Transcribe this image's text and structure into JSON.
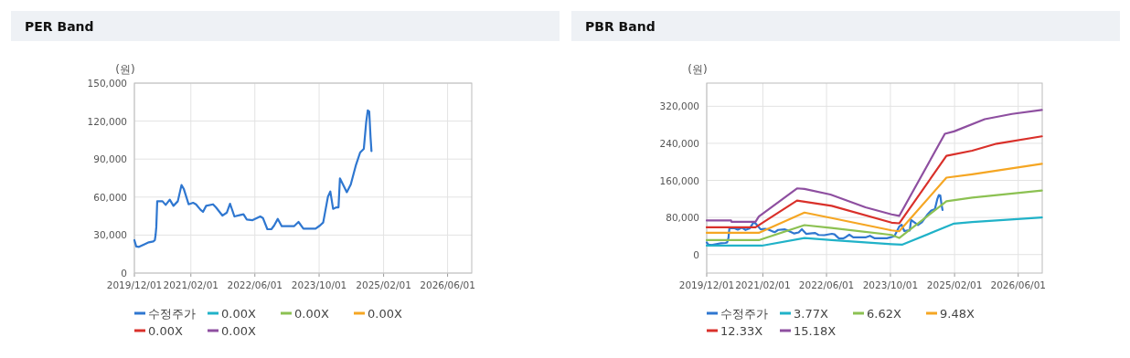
{
  "chart_data": [
    {
      "type": "line",
      "title": "PER Band",
      "ylabel": "(원)",
      "xlim": [
        "2019-12-01",
        "2026-12-01"
      ],
      "ylim": [
        0,
        150000
      ],
      "xticks": [
        {
          "value": "2019-12-01",
          "label": "2019/12/01"
        },
        {
          "value": "2021-02-01",
          "label": "2021/02/01"
        },
        {
          "value": "2022-06-01",
          "label": "2022/06/01"
        },
        {
          "value": "2023-10-01",
          "label": "2023/10/01"
        },
        {
          "value": "2025-02-01",
          "label": "2025/02/01"
        },
        {
          "value": "2026-06-01",
          "label": "2026/06/01"
        }
      ],
      "yticks": [
        0,
        {
          "value": 30000,
          "label": "30,000"
        },
        {
          "value": 60000,
          "label": "60,000"
        },
        {
          "value": 90000,
          "label": "90,000"
        },
        {
          "value": 120000,
          "label": "120,000"
        },
        {
          "value": 150000,
          "label": "150,000"
        }
      ],
      "grid": true,
      "legend": "bottom",
      "line_style": "solid",
      "series": [
        {
          "name": "수정주가",
          "color": "#2f77d0",
          "x": [
            "2019-12-01",
            "2019-12-15",
            "2020-01-05",
            "2020-02-12",
            "2020-03-19",
            "2020-04-22",
            "2020-05-04",
            "2020-05-10",
            "2020-05-15",
            "2020-05-22",
            "2020-07-01",
            "2020-07-25",
            "2020-08-25",
            "2020-09-22",
            "2020-10-25",
            "2020-11-22",
            "2020-12-10",
            "2021-01-15",
            "2021-02-18",
            "2021-03-12",
            "2021-04-15",
            "2021-05-04",
            "2021-05-28",
            "2021-07-19",
            "2021-08-10",
            "2021-09-28",
            "2021-11-01",
            "2021-11-25",
            "2021-12-28",
            "2022-02-12",
            "2022-03-07",
            "2022-04-01",
            "2022-05-15",
            "2022-07-12",
            "2022-08-01",
            "2022-09-04",
            "2022-10-04",
            "2022-10-25",
            "2022-11-22",
            "2022-12-22",
            "2023-03-25",
            "2023-04-28",
            "2023-06-04",
            "2023-09-04",
            "2023-10-07",
            "2023-11-01",
            "2023-12-07",
            "2023-12-25",
            "2024-01-15",
            "2024-02-10",
            "2024-02-25",
            "2024-03-07",
            "2024-04-28",
            "2024-05-28",
            "2024-07-07",
            "2024-08-07",
            "2024-09-04",
            "2024-09-22",
            "2024-10-04",
            "2024-10-15",
            "2024-10-25",
            "2024-11-01"
          ],
          "values": [
            26000,
            21000,
            20700,
            22600,
            24300,
            25000,
            26000,
            30300,
            36300,
            56700,
            56700,
            53800,
            58000,
            53100,
            56700,
            69500,
            66300,
            54300,
            55500,
            54300,
            50000,
            48300,
            53100,
            54300,
            51900,
            45400,
            47800,
            54800,
            44700,
            45900,
            46400,
            42300,
            41800,
            44700,
            43500,
            34600,
            34600,
            37500,
            42800,
            37000,
            37000,
            40400,
            35100,
            35100,
            37500,
            39900,
            60300,
            64400,
            50700,
            51900,
            51900,
            74800,
            63900,
            69900,
            85600,
            95200,
            98100,
            119200,
            128400,
            127600,
            107200,
            96400
          ]
        },
        {
          "name": "0.00X",
          "color": "#20b2c8"
        },
        {
          "name": "0.00X",
          "color": "#8cc152"
        },
        {
          "name": "0.00X",
          "color": "#f5a623"
        },
        {
          "name": "0.00X",
          "color": "#d9302a"
        },
        {
          "name": "0.00X",
          "color": "#8e4fa0"
        }
      ]
    },
    {
      "type": "line",
      "title": "PBR Band",
      "ylabel": "(원)",
      "xlim": [
        "2019-12-01",
        "2026-12-01"
      ],
      "ylim": [
        -40000,
        370000
      ],
      "xticks": [
        {
          "value": "2019-12-01",
          "label": "2019/12/01"
        },
        {
          "value": "2021-02-01",
          "label": "2021/02/01"
        },
        {
          "value": "2022-06-01",
          "label": "2022/06/01"
        },
        {
          "value": "2023-10-01",
          "label": "2023/10/01"
        },
        {
          "value": "2025-02-01",
          "label": "2025/02/01"
        },
        {
          "value": "2026-06-01",
          "label": "2026/06/01"
        }
      ],
      "yticks": [
        0,
        {
          "value": 80000,
          "label": "80,000"
        },
        {
          "value": 160000,
          "label": "160,000"
        },
        {
          "value": 240000,
          "label": "240,000"
        },
        {
          "value": 320000,
          "label": "320,000"
        }
      ],
      "grid": true,
      "legend": "bottom",
      "line_style": "solid",
      "series": [
        {
          "name": "수정주가",
          "color": "#2f77d0",
          "x": [
            "2019-12-01",
            "2019-12-15",
            "2020-01-05",
            "2020-02-12",
            "2020-03-19",
            "2020-04-22",
            "2020-05-04",
            "2020-05-10",
            "2020-05-15",
            "2020-05-22",
            "2020-07-01",
            "2020-07-25",
            "2020-08-25",
            "2020-09-22",
            "2020-10-25",
            "2020-11-22",
            "2020-12-10",
            "2021-01-15",
            "2021-02-18",
            "2021-03-12",
            "2021-04-15",
            "2021-05-04",
            "2021-05-28",
            "2021-07-19",
            "2021-08-10",
            "2021-09-28",
            "2021-11-01",
            "2021-11-25",
            "2021-12-28",
            "2022-02-12",
            "2022-03-07",
            "2022-04-01",
            "2022-05-15",
            "2022-07-12",
            "2022-08-01",
            "2022-09-04",
            "2022-10-04",
            "2022-10-25",
            "2022-11-22",
            "2022-12-22",
            "2023-03-25",
            "2023-04-28",
            "2023-06-04",
            "2023-09-04",
            "2023-10-07",
            "2023-11-01",
            "2023-12-07",
            "2023-12-25",
            "2024-01-15",
            "2024-02-10",
            "2024-02-25",
            "2024-03-07",
            "2024-04-28",
            "2024-05-28",
            "2024-07-07",
            "2024-08-07",
            "2024-09-04",
            "2024-09-22",
            "2024-10-04",
            "2024-10-15",
            "2024-10-25",
            "2024-11-01"
          ],
          "values": [
            26000,
            21000,
            20700,
            22600,
            24300,
            25000,
            26000,
            30300,
            36300,
            56700,
            56700,
            53800,
            58000,
            53100,
            56700,
            69500,
            66300,
            54300,
            55500,
            54300,
            50000,
            48300,
            53100,
            54300,
            51900,
            45400,
            47800,
            54800,
            44700,
            45900,
            46400,
            42300,
            41800,
            44700,
            43500,
            34600,
            34600,
            37500,
            42800,
            37000,
            37000,
            40400,
            35100,
            35100,
            37500,
            39900,
            60300,
            64400,
            50700,
            51900,
            51900,
            74800,
            63900,
            69900,
            85600,
            95200,
            98100,
            119200,
            128400,
            127600,
            107200,
            96400
          ]
        },
        {
          "name": "3.77X",
          "color": "#20b2c8",
          "x": [
            "2019-12-01",
            "2021-01-25",
            "2021-12-15",
            "2022-07-10",
            "2023-10-10",
            "2023-12-28",
            "2025-01-28",
            "2025-06-15",
            "2026-11-28"
          ],
          "values": [
            19200,
            19200,
            35700,
            31100,
            22500,
            21200,
            66800,
            70100,
            80000
          ]
        },
        {
          "name": "6.62X",
          "color": "#8cc152",
          "x": [
            "2019-12-01",
            "2021-01-01",
            "2021-12-15",
            "2022-07-10",
            "2023-10-10",
            "2023-12-07",
            "2024-12-01",
            "2025-06-15",
            "2026-11-28"
          ],
          "values": [
            31100,
            31100,
            63500,
            57500,
            42300,
            35700,
            115000,
            123000,
            138200
          ]
        },
        {
          "name": "9.48X",
          "color": "#f5a623",
          "x": [
            "2019-12-01",
            "2021-01-01",
            "2021-12-15",
            "2022-07-10",
            "2023-10-10",
            "2023-12-07",
            "2024-12-01",
            "2025-06-15",
            "2026-11-28"
          ],
          "values": [
            46900,
            46900,
            90600,
            78700,
            52200,
            50200,
            166000,
            173200,
            195700
          ]
        },
        {
          "name": "12.33X",
          "color": "#d9302a",
          "x": [
            "2019-12-01",
            "2020-12-07",
            "2021-10-19",
            "2022-07-10",
            "2023-10-10",
            "2023-12-07",
            "2024-12-01",
            "2025-06-15",
            "2025-12-19",
            "2026-11-28"
          ],
          "values": [
            58800,
            58800,
            116400,
            105100,
            68800,
            67400,
            212900,
            224100,
            239300,
            255200
          ]
        },
        {
          "name": "15.18X",
          "color": "#8e4fa0",
          "x": [
            "2019-12-01",
            "2020-06-04",
            "2020-06-07",
            "2020-12-07",
            "2021-01-01",
            "2021-10-19",
            "2021-12-15",
            "2022-07-01",
            "2023-03-25",
            "2023-10-10",
            "2023-12-07",
            "2024-11-19",
            "2025-01-28",
            "2025-09-19",
            "2026-04-15",
            "2026-11-28"
          ],
          "values": [
            73400,
            73400,
            70700,
            70700,
            82000,
            142800,
            141500,
            129600,
            101800,
            86600,
            83300,
            260500,
            265800,
            292200,
            303500,
            312100
          ]
        }
      ]
    }
  ]
}
